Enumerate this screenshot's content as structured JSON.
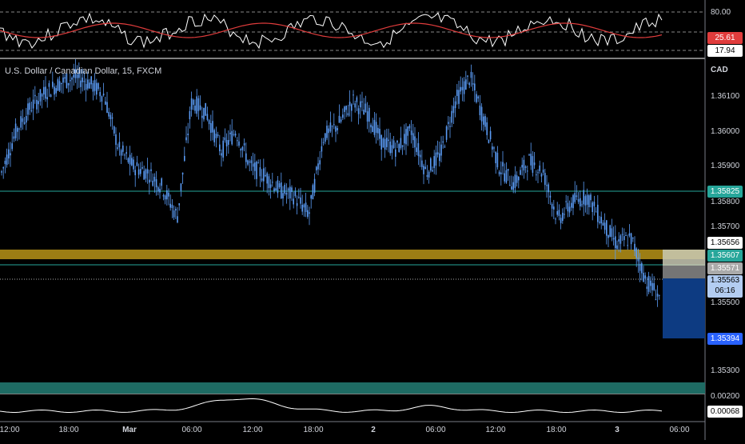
{
  "symbol_title": "U.S. Dollar / Canadian Dollar, 15, FXCM",
  "currency_label": "CAD",
  "rsi": {
    "axis_labels": [
      "80.00"
    ],
    "value_red": "25.61",
    "value_white": "17.94",
    "color_main": "#ffffff",
    "color_signal": "#e03c3c"
  },
  "price_axis": {
    "ticks": [
      "1.36100",
      "1.36000",
      "1.35900",
      "1.35800",
      "1.35700",
      "1.35500",
      "1.35300"
    ]
  },
  "price_labels": {
    "level_green_1": "1.35825",
    "level_white": "1.35656",
    "level_green_2": "1.35607",
    "level_grey": "1.35571",
    "current_price": "1.35563",
    "countdown": "06:16",
    "target_blue": "1.35394"
  },
  "lower_indicator": {
    "axis_label": "0.00200",
    "value": "0.00068"
  },
  "time_axis": {
    "ticks": [
      "12:00",
      "18:00",
      "Mar",
      "06:00",
      "12:00",
      "18:00",
      "2",
      "06:00",
      "12:00",
      "18:00",
      "3",
      "06:00"
    ]
  },
  "colors": {
    "candle": "#5b9cf6",
    "zone_gold": "#9c7d14",
    "zone_teal": "#1e6b63",
    "level_green": "#26a69a",
    "short_box": "#0d3b82",
    "badge_blue": "#2962ff"
  },
  "chart_data": {
    "type": "line",
    "title": "U.S. Dollar / Canadian Dollar, 15, FXCM",
    "y_unit": "CAD",
    "x_ticks": [
      "12:00",
      "18:00",
      "Mar",
      "06:00",
      "12:00",
      "18:00",
      "2",
      "06:00",
      "12:00",
      "18:00",
      "3",
      "06:00"
    ],
    "x": [
      0,
      6,
      12,
      18,
      24,
      30,
      36,
      42,
      48,
      54,
      60,
      66,
      72,
      78,
      84,
      90,
      96,
      102,
      108,
      114,
      120,
      126,
      132,
      138,
      144,
      150,
      156,
      162,
      168,
      174,
      180,
      186,
      192,
      198,
      204,
      210,
      216,
      222,
      228,
      234,
      240,
      246,
      252,
      258,
      264,
      270
    ],
    "close": [
      1.3598,
      1.3612,
      1.362,
      1.3625,
      1.3628,
      1.363,
      1.3628,
      1.3624,
      1.3606,
      1.36,
      1.3598,
      1.3593,
      1.3583,
      1.3622,
      1.3618,
      1.3605,
      1.3612,
      1.36,
      1.3597,
      1.3592,
      1.359,
      1.3584,
      1.361,
      1.3614,
      1.3622,
      1.3618,
      1.3608,
      1.3606,
      1.3612,
      1.3598,
      1.3604,
      1.3622,
      1.363,
      1.3615,
      1.36,
      1.3594,
      1.3602,
      1.3598,
      1.3582,
      1.3588,
      1.359,
      1.3582,
      1.3574,
      1.3576,
      1.3562,
      1.3556
    ],
    "ylim": [
      1.3524,
      1.3636
    ],
    "horizontal_levels": [
      1.35825,
      1.35656,
      1.35607,
      1.35571,
      1.35563
    ],
    "zones": [
      [
        1.35607,
        1.3564
      ],
      [
        1.35245,
        1.3527
      ]
    ],
    "short_position": {
      "entry": 1.35563,
      "stop": 1.35656,
      "target": 1.35394
    },
    "rsi_axis": "80.00",
    "rsi_values": {
      "signal": 25.61,
      "rsi": 17.94
    },
    "lower_values": {
      "axis": 0.002,
      "value": 0.00068
    },
    "grid": false
  }
}
